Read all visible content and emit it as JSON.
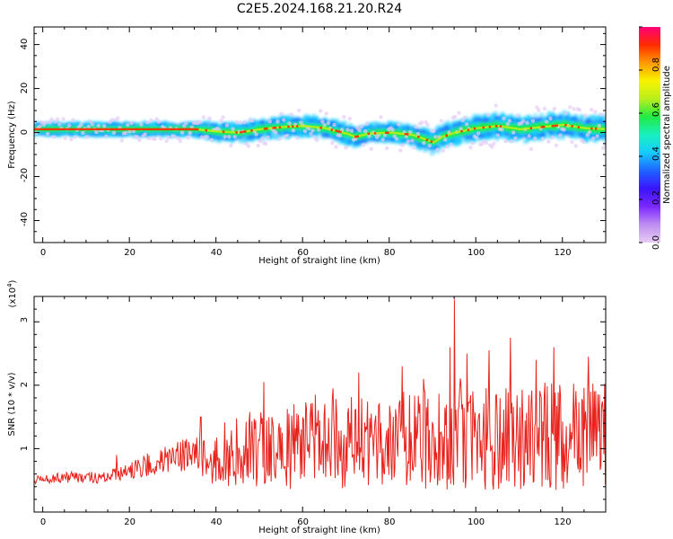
{
  "figure_title": "C2E5.2024.168.21.20.R24",
  "colors": {
    "snr_line": "#e8231d",
    "background": "#ffffff",
    "colormap": [
      "#e6ccf5",
      "#c08ef0",
      "#7a28ff",
      "#3a14ff",
      "#1f63ff",
      "#16cbff",
      "#19f0c0",
      "#22ea43",
      "#b9ef1c",
      "#f7f300",
      "#ff9a00",
      "#ff2b00",
      "#ff0078"
    ]
  },
  "chart_data": [
    {
      "type": "heatmap",
      "xlabel": "Height of straight line (km)",
      "ylabel": "Frequency (Hz)",
      "xlim": [
        -2,
        130
      ],
      "ylim": [
        -50,
        48
      ],
      "xticks": [
        "0",
        "20",
        "40",
        "60",
        "80",
        "100",
        "120"
      ],
      "yticks": [
        "-40",
        "-20",
        "0",
        "20",
        "40"
      ],
      "colorbar": {
        "label": "Normalized spectral amplitude",
        "range": [
          0,
          1
        ],
        "ticks": [
          "0.0",
          "0.2",
          "0.4",
          "0.6",
          "0.8"
        ]
      },
      "ridge_center_hz": {
        "x": [
          -2,
          0,
          10,
          20,
          30,
          35,
          40,
          45,
          50,
          55,
          60,
          65,
          70,
          72,
          75,
          80,
          85,
          88,
          90,
          92,
          95,
          100,
          105,
          110,
          115,
          120,
          125,
          130
        ],
        "y": [
          1.5,
          1.5,
          1.5,
          1.5,
          1.5,
          1.5,
          0.5,
          0,
          1.5,
          2.5,
          3,
          2,
          -0.5,
          -2,
          -0.5,
          0,
          -1,
          -3,
          -4.5,
          -2,
          0,
          2,
          3,
          1.5,
          2.5,
          3.5,
          2,
          1.5
        ]
      },
      "ridge_halfwidth_hz": {
        "x": [
          -2,
          35,
          40,
          60,
          70,
          80,
          90,
          95,
          110,
          130
        ],
        "y": [
          3,
          3.5,
          4.5,
          5,
          5,
          4.5,
          5.5,
          6,
          6,
          6
        ]
      }
    },
    {
      "type": "line",
      "xlabel": "Height of straight line (km)",
      "ylabel": "SNR (10 * v/v)",
      "y_multiplier": "(x10",
      "y_multiplier_exponent": "4",
      "y_multiplier_close": ")",
      "xlim": [
        -2,
        130
      ],
      "ylim": [
        0,
        3.4
      ],
      "xticks": [
        "0",
        "20",
        "40",
        "60",
        "80",
        "100",
        "120"
      ],
      "yticks": [
        "1",
        "2",
        "3"
      ],
      "series": [
        {
          "envelope": {
            "x": [
              -2,
              5,
              10,
              15,
              20,
              25,
              30,
              35,
              38,
              40,
              45,
              50,
              55,
              60,
              65,
              70,
              75,
              80,
              85,
              90,
              94,
              95,
              96,
              100,
              105,
              110,
              115,
              120,
              125,
              130
            ],
            "center": [
              0.5,
              0.55,
              0.55,
              0.55,
              0.65,
              0.75,
              0.85,
              0.95,
              1.0,
              0.9,
              0.95,
              1.0,
              1.0,
              1.05,
              1.05,
              1.1,
              1.1,
              1.15,
              1.15,
              1.2,
              1.25,
              1.3,
              1.25,
              1.2,
              1.2,
              1.2,
              1.2,
              1.2,
              1.2,
              1.2
            ],
            "amplitude": [
              0.07,
              0.1,
              0.1,
              0.12,
              0.14,
              0.2,
              0.22,
              0.3,
              0.5,
              0.5,
              0.6,
              0.65,
              0.65,
              0.7,
              0.7,
              0.72,
              0.72,
              0.75,
              0.8,
              0.85,
              0.9,
              1.0,
              0.9,
              0.85,
              0.85,
              0.85,
              0.85,
              0.85,
              0.85,
              0.85
            ]
          },
          "peaks": {
            "x": [
              17,
              36.5,
              51,
              58,
              63,
              67,
              73,
              83,
              88,
              94,
              95,
              98,
              103,
              108,
              114,
              118,
              126,
              128.5
            ],
            "y": [
              0.9,
              1.5,
              2.05,
              1.7,
              1.85,
              1.95,
              2.2,
              2.3,
              2.1,
              2.6,
              3.35,
              2.5,
              2.55,
              2.75,
              2.4,
              2.6,
              2.45,
              1.85
            ]
          }
        }
      ]
    }
  ]
}
